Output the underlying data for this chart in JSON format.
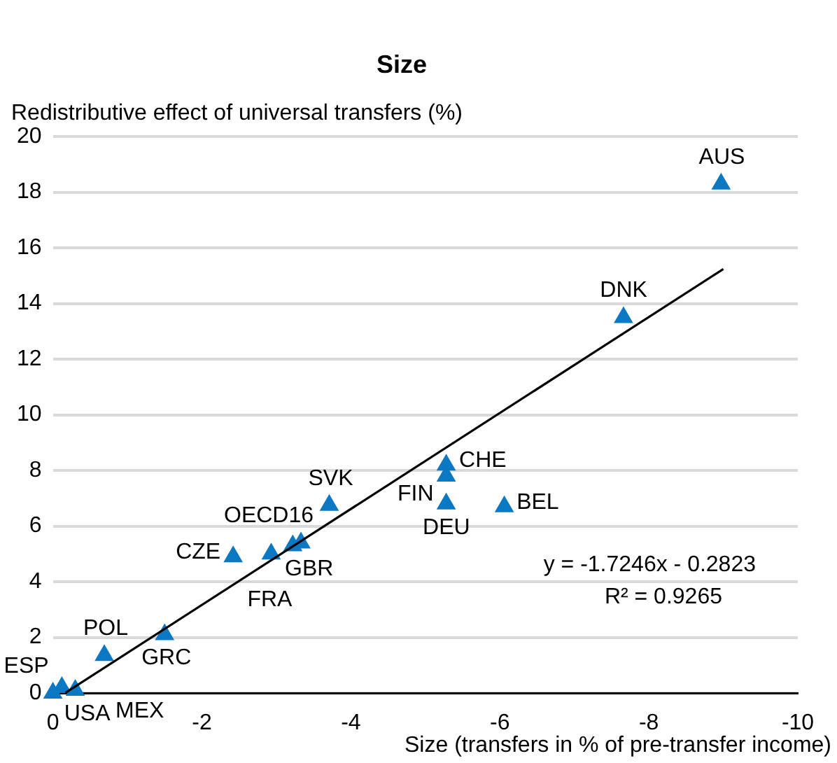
{
  "chart_data": {
    "type": "scatter",
    "title": "Size",
    "xlabel": "Size (transfers in % of pre-transfer income)",
    "ylabel": "Redistributive effect of universal transfers (%)",
    "series": [
      {
        "type": "scatter",
        "color": "#0a78c2",
        "marker": "triangle",
        "x": [
          -8.97,
          -7.66,
          -5.28,
          -5.28,
          -5.28,
          -6.06,
          -3.71,
          -3.33,
          -3.22,
          -2.93,
          -2.42,
          -1.5,
          -0.69,
          -0.3,
          -0.12,
          0
        ],
        "values": [
          18.3,
          13.5,
          8.2,
          7.8,
          6.8,
          6.7,
          6.75,
          5.4,
          5.3,
          5.0,
          4.9,
          2.1,
          1.35,
          0.1,
          0.2,
          0
        ]
      },
      {
        "type": "line",
        "color": "#000000",
        "marker": "none",
        "x": [
          -0.17,
          -9
        ],
        "values": [
          0.01,
          15.24
        ]
      }
    ],
    "annotations": [
      {
        "text": "AUS",
        "x": -8.97,
        "y": 18.3
      },
      {
        "text": "DNK",
        "x": -7.66,
        "y": 13.5
      },
      {
        "text": "CHE",
        "x": -5.28,
        "y": 8.2
      },
      {
        "text": "FIN",
        "x": -5.28,
        "y": 7.8
      },
      {
        "text": "DEU",
        "x": -5.28,
        "y": 6.8
      },
      {
        "text": "BEL",
        "x": -6.06,
        "y": 6.7
      },
      {
        "text": "SVK",
        "x": -3.71,
        "y": 6.75
      },
      {
        "text": "OECD16",
        "x": -3.33,
        "y": 5.4
      },
      {
        "text": "GBR",
        "x": -3.22,
        "y": 5.3
      },
      {
        "text": "FRA",
        "x": -2.93,
        "y": 5.0
      },
      {
        "text": "CZE",
        "x": -2.42,
        "y": 4.9
      },
      {
        "text": "GRC",
        "x": -1.5,
        "y": 2.1
      },
      {
        "text": "POL",
        "x": -0.69,
        "y": 1.35
      },
      {
        "text": "USA",
        "x": -0.3,
        "y": 0.1
      },
      {
        "text": "MEX",
        "x": -0.12,
        "y": 0.2
      },
      {
        "text": "ESP",
        "x": 0,
        "y": 0
      },
      "y = -1.7246x - 0.2823",
      "R² = 0.9265"
    ],
    "xlim": [
      0,
      -10
    ],
    "xticks": [
      0,
      -2,
      -4,
      -6,
      -8,
      -10
    ],
    "ylim": [
      0,
      20
    ],
    "yticks": [
      0,
      2,
      4,
      6,
      8,
      10,
      12,
      14,
      16,
      18,
      20
    ],
    "grid": "y",
    "legend": false
  }
}
